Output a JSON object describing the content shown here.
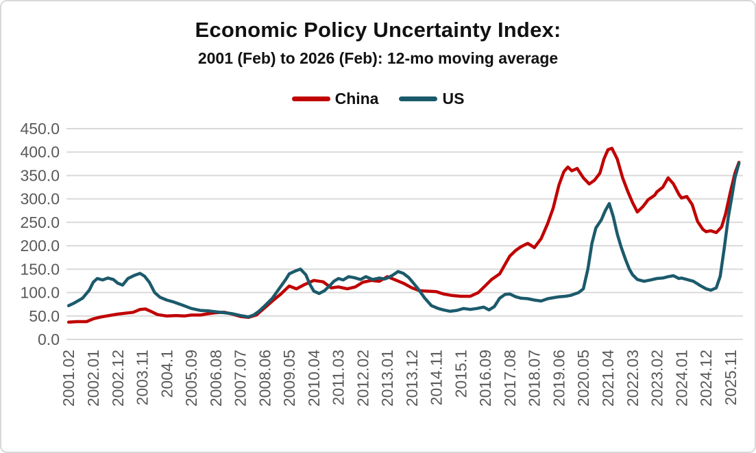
{
  "chart_data": {
    "type": "line",
    "title": "Economic Policy Uncertainty Index:",
    "subtitle": "2001 (Feb) to 2026 (Feb): 12-mo moving average",
    "legend_position": "top-center",
    "grid": "horizontal",
    "grid_color": "#d9d9d9",
    "axis_label_color": "#595959",
    "ylim": [
      0,
      450
    ],
    "y_ticks": [
      0,
      50,
      100,
      150,
      200,
      250,
      300,
      350,
      400,
      450
    ],
    "y_tick_decimals": 1,
    "xlim": [
      2001.0,
      2026.3
    ],
    "x_ticks": [
      {
        "label": "2001.02",
        "x": 2001.083
      },
      {
        "label": "2002.01",
        "x": 2002.0
      },
      {
        "label": "2002.12",
        "x": 2002.917
      },
      {
        "label": "2003.11",
        "x": 2003.833
      },
      {
        "label": "2004.1",
        "x": 2004.75
      },
      {
        "label": "2005.09",
        "x": 2005.667
      },
      {
        "label": "2006.08",
        "x": 2006.583
      },
      {
        "label": "2007.07",
        "x": 2007.5
      },
      {
        "label": "2008.06",
        "x": 2008.417
      },
      {
        "label": "2009.05",
        "x": 2009.333
      },
      {
        "label": "2010.04",
        "x": 2010.25
      },
      {
        "label": "2011.03",
        "x": 2011.167
      },
      {
        "label": "2012.02",
        "x": 2012.083
      },
      {
        "label": "2013.01",
        "x": 2013.0
      },
      {
        "label": "2013.12",
        "x": 2013.917
      },
      {
        "label": "2014.11",
        "x": 2014.833
      },
      {
        "label": "2015.1",
        "x": 2015.75
      },
      {
        "label": "2016.09",
        "x": 2016.667
      },
      {
        "label": "2017.08",
        "x": 2017.583
      },
      {
        "label": "2018.07",
        "x": 2018.5
      },
      {
        "label": "2019.06",
        "x": 2019.417
      },
      {
        "label": "2020.05",
        "x": 2020.333
      },
      {
        "label": "2021.04",
        "x": 2021.25
      },
      {
        "label": "2022.03",
        "x": 2022.167
      },
      {
        "label": "2023.02",
        "x": 2023.083
      },
      {
        "label": "2024.01",
        "x": 2024.0
      },
      {
        "label": "2024.12",
        "x": 2024.917
      },
      {
        "label": "2025.11",
        "x": 2025.833
      }
    ],
    "series": [
      {
        "name": "China",
        "color": "#c00000",
        "points": [
          [
            2001.08,
            37
          ],
          [
            2001.4,
            38
          ],
          [
            2001.75,
            38
          ],
          [
            2002.0,
            44
          ],
          [
            2002.3,
            48
          ],
          [
            2002.6,
            51
          ],
          [
            2002.92,
            54
          ],
          [
            2003.2,
            56
          ],
          [
            2003.5,
            58
          ],
          [
            2003.75,
            64
          ],
          [
            2003.95,
            65
          ],
          [
            2004.15,
            60
          ],
          [
            2004.4,
            53
          ],
          [
            2004.75,
            50
          ],
          [
            2005.1,
            51
          ],
          [
            2005.4,
            50
          ],
          [
            2005.67,
            52
          ],
          [
            2006.0,
            52
          ],
          [
            2006.3,
            55
          ],
          [
            2006.58,
            57
          ],
          [
            2006.9,
            58
          ],
          [
            2007.2,
            54
          ],
          [
            2007.5,
            49
          ],
          [
            2007.8,
            47
          ],
          [
            2008.1,
            52
          ],
          [
            2008.42,
            68
          ],
          [
            2008.7,
            82
          ],
          [
            2009.0,
            96
          ],
          [
            2009.33,
            114
          ],
          [
            2009.6,
            108
          ],
          [
            2009.9,
            117
          ],
          [
            2010.25,
            126
          ],
          [
            2010.6,
            123
          ],
          [
            2010.9,
            110
          ],
          [
            2011.17,
            112
          ],
          [
            2011.5,
            108
          ],
          [
            2011.8,
            112
          ],
          [
            2012.08,
            122
          ],
          [
            2012.4,
            126
          ],
          [
            2012.7,
            124
          ],
          [
            2013.0,
            134
          ],
          [
            2013.3,
            127
          ],
          [
            2013.6,
            120
          ],
          [
            2013.92,
            110
          ],
          [
            2014.2,
            104
          ],
          [
            2014.5,
            103
          ],
          [
            2014.83,
            102
          ],
          [
            2015.1,
            97
          ],
          [
            2015.4,
            94
          ],
          [
            2015.75,
            92
          ],
          [
            2016.1,
            92
          ],
          [
            2016.4,
            100
          ],
          [
            2016.67,
            115
          ],
          [
            2016.9,
            128
          ],
          [
            2017.2,
            140
          ],
          [
            2017.4,
            160
          ],
          [
            2017.58,
            178
          ],
          [
            2017.8,
            190
          ],
          [
            2018.0,
            198
          ],
          [
            2018.25,
            205
          ],
          [
            2018.5,
            196
          ],
          [
            2018.75,
            215
          ],
          [
            2019.0,
            248
          ],
          [
            2019.2,
            280
          ],
          [
            2019.42,
            330
          ],
          [
            2019.6,
            358
          ],
          [
            2019.75,
            368
          ],
          [
            2019.9,
            360
          ],
          [
            2020.1,
            365
          ],
          [
            2020.33,
            345
          ],
          [
            2020.55,
            332
          ],
          [
            2020.75,
            340
          ],
          [
            2020.95,
            355
          ],
          [
            2021.1,
            385
          ],
          [
            2021.25,
            405
          ],
          [
            2021.4,
            408
          ],
          [
            2021.6,
            385
          ],
          [
            2021.8,
            345
          ],
          [
            2022.0,
            315
          ],
          [
            2022.17,
            292
          ],
          [
            2022.35,
            272
          ],
          [
            2022.55,
            283
          ],
          [
            2022.75,
            298
          ],
          [
            2023.0,
            308
          ],
          [
            2023.08,
            315
          ],
          [
            2023.3,
            325
          ],
          [
            2023.5,
            345
          ],
          [
            2023.7,
            332
          ],
          [
            2023.9,
            310
          ],
          [
            2024.0,
            302
          ],
          [
            2024.2,
            305
          ],
          [
            2024.4,
            288
          ],
          [
            2024.6,
            252
          ],
          [
            2024.8,
            235
          ],
          [
            2024.92,
            230
          ],
          [
            2025.1,
            232
          ],
          [
            2025.3,
            228
          ],
          [
            2025.5,
            240
          ],
          [
            2025.65,
            268
          ],
          [
            2025.83,
            315
          ],
          [
            2026.0,
            355
          ],
          [
            2026.15,
            378
          ]
        ]
      },
      {
        "name": "US",
        "color": "#1b5a6b",
        "points": [
          [
            2001.08,
            72
          ],
          [
            2001.3,
            78
          ],
          [
            2001.6,
            88
          ],
          [
            2001.85,
            105
          ],
          [
            2002.0,
            122
          ],
          [
            2002.15,
            130
          ],
          [
            2002.35,
            127
          ],
          [
            2002.55,
            131
          ],
          [
            2002.75,
            128
          ],
          [
            2002.92,
            120
          ],
          [
            2003.1,
            116
          ],
          [
            2003.3,
            130
          ],
          [
            2003.55,
            137
          ],
          [
            2003.75,
            141
          ],
          [
            2003.92,
            135
          ],
          [
            2004.1,
            122
          ],
          [
            2004.3,
            100
          ],
          [
            2004.5,
            90
          ],
          [
            2004.75,
            84
          ],
          [
            2005.0,
            80
          ],
          [
            2005.3,
            74
          ],
          [
            2005.67,
            66
          ],
          [
            2006.0,
            62
          ],
          [
            2006.3,
            61
          ],
          [
            2006.58,
            59
          ],
          [
            2006.9,
            57
          ],
          [
            2007.2,
            55
          ],
          [
            2007.5,
            51
          ],
          [
            2007.8,
            48
          ],
          [
            2008.0,
            52
          ],
          [
            2008.2,
            60
          ],
          [
            2008.42,
            72
          ],
          [
            2008.7,
            88
          ],
          [
            2009.0,
            112
          ],
          [
            2009.2,
            128
          ],
          [
            2009.33,
            140
          ],
          [
            2009.55,
            146
          ],
          [
            2009.75,
            150
          ],
          [
            2009.95,
            138
          ],
          [
            2010.1,
            118
          ],
          [
            2010.25,
            103
          ],
          [
            2010.45,
            98
          ],
          [
            2010.65,
            104
          ],
          [
            2010.85,
            115
          ],
          [
            2011.0,
            124
          ],
          [
            2011.17,
            130
          ],
          [
            2011.35,
            127
          ],
          [
            2011.55,
            134
          ],
          [
            2011.75,
            132
          ],
          [
            2012.0,
            128
          ],
          [
            2012.2,
            134
          ],
          [
            2012.45,
            128
          ],
          [
            2012.7,
            131
          ],
          [
            2012.9,
            129
          ],
          [
            2013.0,
            131
          ],
          [
            2013.2,
            137
          ],
          [
            2013.4,
            145
          ],
          [
            2013.6,
            141
          ],
          [
            2013.8,
            132
          ],
          [
            2013.95,
            122
          ],
          [
            2014.15,
            108
          ],
          [
            2014.4,
            88
          ],
          [
            2014.65,
            72
          ],
          [
            2014.9,
            66
          ],
          [
            2015.1,
            63
          ],
          [
            2015.35,
            60
          ],
          [
            2015.6,
            62
          ],
          [
            2015.85,
            66
          ],
          [
            2016.1,
            64
          ],
          [
            2016.35,
            66
          ],
          [
            2016.6,
            69
          ],
          [
            2016.8,
            63
          ],
          [
            2017.0,
            70
          ],
          [
            2017.2,
            88
          ],
          [
            2017.4,
            96
          ],
          [
            2017.58,
            97
          ],
          [
            2017.8,
            91
          ],
          [
            2018.0,
            88
          ],
          [
            2018.25,
            87
          ],
          [
            2018.5,
            84
          ],
          [
            2018.75,
            82
          ],
          [
            2019.0,
            87
          ],
          [
            2019.2,
            89
          ],
          [
            2019.42,
            91
          ],
          [
            2019.65,
            92
          ],
          [
            2019.85,
            94
          ],
          [
            2020.0,
            97
          ],
          [
            2020.15,
            100
          ],
          [
            2020.33,
            108
          ],
          [
            2020.5,
            150
          ],
          [
            2020.65,
            205
          ],
          [
            2020.8,
            238
          ],
          [
            2021.0,
            255
          ],
          [
            2021.15,
            275
          ],
          [
            2021.3,
            290
          ],
          [
            2021.45,
            262
          ],
          [
            2021.6,
            225
          ],
          [
            2021.75,
            196
          ],
          [
            2021.9,
            172
          ],
          [
            2022.05,
            150
          ],
          [
            2022.17,
            138
          ],
          [
            2022.35,
            128
          ],
          [
            2022.6,
            124
          ],
          [
            2022.85,
            127
          ],
          [
            2023.08,
            130
          ],
          [
            2023.3,
            131
          ],
          [
            2023.5,
            134
          ],
          [
            2023.7,
            136
          ],
          [
            2023.9,
            130
          ],
          [
            2024.0,
            131
          ],
          [
            2024.2,
            128
          ],
          [
            2024.45,
            124
          ],
          [
            2024.7,
            115
          ],
          [
            2024.92,
            108
          ],
          [
            2025.1,
            105
          ],
          [
            2025.3,
            110
          ],
          [
            2025.45,
            135
          ],
          [
            2025.6,
            195
          ],
          [
            2025.75,
            260
          ],
          [
            2025.9,
            310
          ],
          [
            2026.0,
            345
          ],
          [
            2026.15,
            376
          ]
        ]
      }
    ]
  }
}
